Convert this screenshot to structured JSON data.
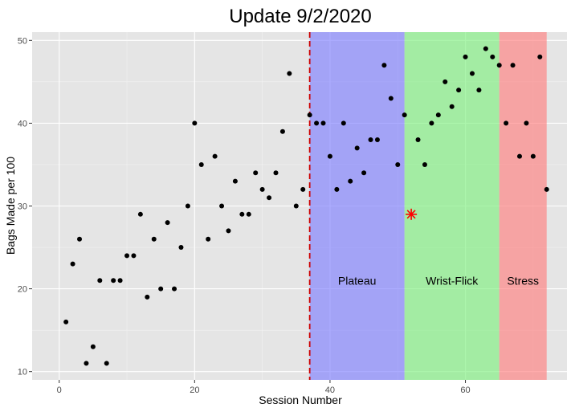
{
  "chart_data": {
    "type": "scatter",
    "title": "Update 9/2/2020",
    "xlabel": "Session Number",
    "ylabel": "Bags Made per 100",
    "xlim": [
      -4,
      75
    ],
    "ylim": [
      9,
      51
    ],
    "x_ticks": [
      0,
      20,
      40,
      60
    ],
    "y_ticks": [
      10,
      20,
      30,
      40,
      50
    ],
    "grid": true,
    "panel_color": "#e5e5e5",
    "point_color": "#000000",
    "vline": {
      "x": 37,
      "color": "#cc0000",
      "style": "dashed"
    },
    "regions": [
      {
        "label": "Plateau",
        "x_start": 37,
        "x_end": 51,
        "color": "#8080ff",
        "label_y": 21
      },
      {
        "label": "Wrist-Flick",
        "x_start": 51,
        "x_end": 65,
        "color": "#80f080",
        "label_y": 21
      },
      {
        "label": "Stress",
        "x_start": 65,
        "x_end": 72,
        "color": "#ff8080",
        "label_y": 21
      }
    ],
    "highlight": {
      "x": 52,
      "y": 29,
      "color": "#ff0000",
      "marker": "asterisk"
    },
    "points": [
      {
        "x": 1,
        "y": 16
      },
      {
        "x": 2,
        "y": 23
      },
      {
        "x": 3,
        "y": 26
      },
      {
        "x": 4,
        "y": 11
      },
      {
        "x": 5,
        "y": 13
      },
      {
        "x": 6,
        "y": 21
      },
      {
        "x": 7,
        "y": 11
      },
      {
        "x": 8,
        "y": 21
      },
      {
        "x": 9,
        "y": 21
      },
      {
        "x": 10,
        "y": 24
      },
      {
        "x": 11,
        "y": 24
      },
      {
        "x": 12,
        "y": 29
      },
      {
        "x": 13,
        "y": 19
      },
      {
        "x": 14,
        "y": 26
      },
      {
        "x": 15,
        "y": 20
      },
      {
        "x": 16,
        "y": 28
      },
      {
        "x": 17,
        "y": 20
      },
      {
        "x": 18,
        "y": 25
      },
      {
        "x": 19,
        "y": 30
      },
      {
        "x": 20,
        "y": 40
      },
      {
        "x": 21,
        "y": 35
      },
      {
        "x": 22,
        "y": 26
      },
      {
        "x": 23,
        "y": 36
      },
      {
        "x": 24,
        "y": 30
      },
      {
        "x": 25,
        "y": 27
      },
      {
        "x": 26,
        "y": 33
      },
      {
        "x": 27,
        "y": 29
      },
      {
        "x": 28,
        "y": 29
      },
      {
        "x": 29,
        "y": 34
      },
      {
        "x": 30,
        "y": 32
      },
      {
        "x": 31,
        "y": 31
      },
      {
        "x": 32,
        "y": 34
      },
      {
        "x": 33,
        "y": 39
      },
      {
        "x": 34,
        "y": 46
      },
      {
        "x": 35,
        "y": 30
      },
      {
        "x": 36,
        "y": 32
      },
      {
        "x": 37,
        "y": 41
      },
      {
        "x": 38,
        "y": 40
      },
      {
        "x": 39,
        "y": 40
      },
      {
        "x": 40,
        "y": 36
      },
      {
        "x": 41,
        "y": 32
      },
      {
        "x": 42,
        "y": 40
      },
      {
        "x": 43,
        "y": 33
      },
      {
        "x": 44,
        "y": 37
      },
      {
        "x": 45,
        "y": 34
      },
      {
        "x": 46,
        "y": 38
      },
      {
        "x": 47,
        "y": 38
      },
      {
        "x": 48,
        "y": 47
      },
      {
        "x": 49,
        "y": 43
      },
      {
        "x": 50,
        "y": 35
      },
      {
        "x": 51,
        "y": 41
      },
      {
        "x": 53,
        "y": 38
      },
      {
        "x": 54,
        "y": 35
      },
      {
        "x": 55,
        "y": 40
      },
      {
        "x": 56,
        "y": 41
      },
      {
        "x": 57,
        "y": 45
      },
      {
        "x": 58,
        "y": 42
      },
      {
        "x": 59,
        "y": 44
      },
      {
        "x": 60,
        "y": 48
      },
      {
        "x": 61,
        "y": 46
      },
      {
        "x": 62,
        "y": 44
      },
      {
        "x": 63,
        "y": 49
      },
      {
        "x": 64,
        "y": 48
      },
      {
        "x": 65,
        "y": 47
      },
      {
        "x": 66,
        "y": 40
      },
      {
        "x": 67,
        "y": 47
      },
      {
        "x": 68,
        "y": 36
      },
      {
        "x": 69,
        "y": 40
      },
      {
        "x": 70,
        "y": 36
      },
      {
        "x": 71,
        "y": 48
      },
      {
        "x": 72,
        "y": 32
      }
    ]
  }
}
